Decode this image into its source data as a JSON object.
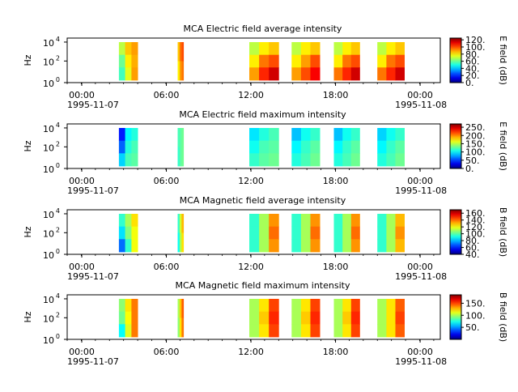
{
  "figure": {
    "colormap": "jet",
    "background": "#ffffff"
  },
  "chart_data": [
    {
      "type": "heatmap",
      "title": "MCA  Electric field average intensity",
      "ylabel": "Hz",
      "colorbar_label": "E field (dB)",
      "colorbar_ticks": [
        "0.",
        "20.",
        "40.",
        "60.",
        "80.",
        "100.",
        "120."
      ],
      "colorbar_range": [
        0,
        125
      ],
      "yscale": "log",
      "ylim": [
        1,
        31623
      ],
      "y_ticks": [
        {
          "base": "10",
          "exp": "0"
        },
        {
          "base": "10",
          "exp": "2"
        },
        {
          "base": "10",
          "exp": "4"
        }
      ],
      "x_ticks": [
        "00:00",
        "06:00",
        "12:00",
        "18:00",
        "00:00"
      ],
      "x_dates": [
        "1995-11-07",
        "1995-11-08"
      ],
      "xlim": [
        "1995-11-07T00:00",
        "1995-11-08T02:00"
      ],
      "data_blocks": [
        {
          "start": "03:40",
          "end": "05:00",
          "values": [
            [
              70,
              85,
              90
            ],
            [
              60,
              80,
              88
            ],
            [
              55,
              75,
              90
            ]
          ]
        },
        {
          "start": "07:50",
          "end": "08:15",
          "values": [
            [
              85,
              95,
              100
            ],
            [
              80,
              90,
              95
            ]
          ]
        },
        {
          "start": "12:55",
          "end": "15:00",
          "values": [
            [
              70,
              80,
              85
            ],
            [
              80,
              95,
              100
            ],
            [
              90,
              105,
              115
            ]
          ]
        },
        {
          "start": "15:55",
          "end": "17:55",
          "values": [
            [
              70,
              80,
              85
            ],
            [
              80,
              90,
              100
            ],
            [
              90,
              100,
              110
            ]
          ]
        },
        {
          "start": "18:55",
          "end": "20:45",
          "values": [
            [
              70,
              80,
              85
            ],
            [
              80,
              95,
              100
            ],
            [
              95,
              105,
              115
            ]
          ]
        },
        {
          "start": "22:00",
          "end": "23:55",
          "values": [
            [
              70,
              80,
              85
            ],
            [
              80,
              95,
              100
            ],
            [
              95,
              105,
              115
            ]
          ]
        }
      ]
    },
    {
      "type": "heatmap",
      "title": "MCA  Electric field maximum intensity",
      "ylabel": "Hz",
      "colorbar_label": "E field (dB)",
      "colorbar_ticks": [
        "0.",
        "50.",
        "100.",
        "150.",
        "200.",
        "250."
      ],
      "colorbar_range": [
        0,
        270
      ],
      "yscale": "log",
      "ylim": [
        1,
        31623
      ],
      "y_ticks": [
        {
          "base": "10",
          "exp": "0"
        },
        {
          "base": "10",
          "exp": "2"
        },
        {
          "base": "10",
          "exp": "4"
        }
      ],
      "x_ticks": [
        "00:00",
        "06:00",
        "12:00",
        "18:00",
        "00:00"
      ],
      "x_dates": [
        "1995-11-07",
        "1995-11-08"
      ],
      "xlim": [
        "1995-11-07T00:00",
        "1995-11-08T02:00"
      ],
      "data_blocks": [
        {
          "start": "03:40",
          "end": "05:00",
          "values": [
            [
              40,
              100,
              110
            ],
            [
              60,
              110,
              120
            ],
            [
              90,
              120,
              125
            ]
          ]
        },
        {
          "start": "07:50",
          "end": "08:15",
          "values": [
            [
              120,
              125,
              130
            ],
            [
              115,
              125,
              130
            ]
          ]
        },
        {
          "start": "12:55",
          "end": "15:00",
          "values": [
            [
              95,
              110,
              120
            ],
            [
              105,
              120,
              125
            ],
            [
              115,
              125,
              130
            ]
          ]
        },
        {
          "start": "15:55",
          "end": "17:55",
          "values": [
            [
              85,
              105,
              115
            ],
            [
              100,
              115,
              125
            ],
            [
              110,
              120,
              130
            ]
          ]
        },
        {
          "start": "18:55",
          "end": "20:45",
          "values": [
            [
              85,
              105,
              115
            ],
            [
              100,
              115,
              125
            ],
            [
              110,
              120,
              130
            ]
          ]
        },
        {
          "start": "22:00",
          "end": "23:55",
          "values": [
            [
              90,
              105,
              115
            ],
            [
              100,
              115,
              125
            ],
            [
              110,
              120,
              130
            ]
          ]
        }
      ]
    },
    {
      "type": "heatmap",
      "title": "MCA  Magnetic field average intensity",
      "ylabel": "Hz",
      "colorbar_label": "B field (dB)",
      "colorbar_ticks": [
        "40.",
        "60.",
        "80.",
        "100.",
        "120.",
        "140.",
        "160."
      ],
      "colorbar_range": [
        40,
        170
      ],
      "yscale": "log",
      "ylim": [
        1,
        31623
      ],
      "y_ticks": [
        {
          "base": "10",
          "exp": "0"
        },
        {
          "base": "10",
          "exp": "2"
        },
        {
          "base": "10",
          "exp": "4"
        }
      ],
      "x_ticks": [
        "00:00",
        "06:00",
        "12:00",
        "18:00",
        "00:00"
      ],
      "x_dates": [
        "1995-11-07",
        "1995-11-08"
      ],
      "xlim": [
        "1995-11-07T00:00",
        "1995-11-08T02:00"
      ],
      "data_blocks": [
        {
          "start": "03:40",
          "end": "05:00",
          "values": [
            [
              95,
              110,
              125
            ],
            [
              85,
              105,
              120
            ],
            [
              70,
              95,
              120
            ]
          ]
        },
        {
          "start": "07:50",
          "end": "08:15",
          "values": [
            [
              95,
              115,
              130
            ],
            [
              90,
              110,
              125
            ]
          ]
        },
        {
          "start": "12:55",
          "end": "15:00",
          "values": [
            [
              95,
              110,
              135
            ],
            [
              95,
              110,
              140
            ],
            [
              95,
              110,
              135
            ]
          ]
        },
        {
          "start": "15:55",
          "end": "17:55",
          "values": [
            [
              95,
              110,
              135
            ],
            [
              95,
              110,
              140
            ],
            [
              95,
              110,
              135
            ]
          ]
        },
        {
          "start": "18:55",
          "end": "20:45",
          "values": [
            [
              95,
              110,
              135
            ],
            [
              95,
              110,
              140
            ],
            [
              95,
              110,
              135
            ]
          ]
        },
        {
          "start": "22:00",
          "end": "23:55",
          "values": [
            [
              95,
              110,
              130
            ],
            [
              95,
              110,
              135
            ],
            [
              95,
              110,
              130
            ]
          ]
        }
      ]
    },
    {
      "type": "heatmap",
      "title": "MCA  Magnetic field maximum intensity",
      "ylabel": "Hz",
      "colorbar_label": "B field (dB)",
      "colorbar_ticks": [
        "50.",
        "100.",
        "150."
      ],
      "colorbar_range": [
        0,
        185
      ],
      "yscale": "log",
      "ylim": [
        1,
        31623
      ],
      "y_ticks": [
        {
          "base": "10",
          "exp": "0"
        },
        {
          "base": "10",
          "exp": "2"
        },
        {
          "base": "10",
          "exp": "4"
        }
      ],
      "x_ticks": [
        "00:00",
        "06:00",
        "12:00",
        "18:00",
        "00:00"
      ],
      "x_dates": [
        "1995-11-07",
        "1995-11-08"
      ],
      "xlim": [
        "1995-11-07T00:00",
        "1995-11-08T02:00"
      ],
      "data_blocks": [
        {
          "start": "03:40",
          "end": "05:00",
          "values": [
            [
              95,
              120,
              140
            ],
            [
              90,
              115,
              140
            ],
            [
              70,
              110,
              140
            ]
          ]
        },
        {
          "start": "07:50",
          "end": "08:15",
          "values": [
            [
              100,
              125,
              145
            ],
            [
              95,
              120,
              140
            ]
          ]
        },
        {
          "start": "12:55",
          "end": "15:00",
          "values": [
            [
              100,
              120,
              150
            ],
            [
              100,
              125,
              155
            ],
            [
              100,
              120,
              150
            ]
          ]
        },
        {
          "start": "15:55",
          "end": "17:55",
          "values": [
            [
              100,
              120,
              150
            ],
            [
              100,
              125,
              155
            ],
            [
              100,
              120,
              150
            ]
          ]
        },
        {
          "start": "18:55",
          "end": "20:45",
          "values": [
            [
              100,
              120,
              150
            ],
            [
              100,
              125,
              155
            ],
            [
              100,
              120,
              150
            ]
          ]
        },
        {
          "start": "22:00",
          "end": "23:55",
          "values": [
            [
              100,
              120,
              145
            ],
            [
              100,
              120,
              150
            ],
            [
              100,
              120,
              145
            ]
          ]
        }
      ]
    }
  ]
}
